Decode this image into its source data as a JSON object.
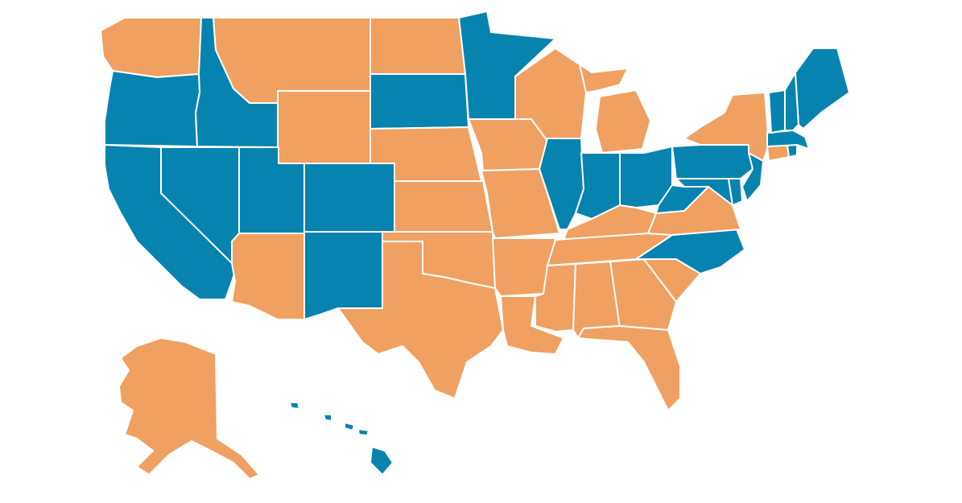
{
  "colors": {
    "blue": "#0783b0",
    "orange": "#f0a060",
    "background": "#ffffff"
  },
  "states": [
    {
      "code": "WA",
      "group": "orange"
    },
    {
      "code": "OR",
      "group": "blue"
    },
    {
      "code": "CA",
      "group": "blue"
    },
    {
      "code": "ID",
      "group": "blue"
    },
    {
      "code": "NV",
      "group": "blue"
    },
    {
      "code": "MT",
      "group": "orange"
    },
    {
      "code": "WY",
      "group": "orange"
    },
    {
      "code": "UT",
      "group": "blue"
    },
    {
      "code": "AZ",
      "group": "orange"
    },
    {
      "code": "CO",
      "group": "blue"
    },
    {
      "code": "NM",
      "group": "blue"
    },
    {
      "code": "ND",
      "group": "orange"
    },
    {
      "code": "SD",
      "group": "blue"
    },
    {
      "code": "NE",
      "group": "orange"
    },
    {
      "code": "KS",
      "group": "orange"
    },
    {
      "code": "OK",
      "group": "orange"
    },
    {
      "code": "TX",
      "group": "orange"
    },
    {
      "code": "MN",
      "group": "blue"
    },
    {
      "code": "IA",
      "group": "orange"
    },
    {
      "code": "MO",
      "group": "orange"
    },
    {
      "code": "AR",
      "group": "orange"
    },
    {
      "code": "LA",
      "group": "orange"
    },
    {
      "code": "WI",
      "group": "orange"
    },
    {
      "code": "IL",
      "group": "blue"
    },
    {
      "code": "MI",
      "group": "orange"
    },
    {
      "code": "IN",
      "group": "blue"
    },
    {
      "code": "OH",
      "group": "blue"
    },
    {
      "code": "KY",
      "group": "orange"
    },
    {
      "code": "TN",
      "group": "orange"
    },
    {
      "code": "MS",
      "group": "orange"
    },
    {
      "code": "AL",
      "group": "orange"
    },
    {
      "code": "GA",
      "group": "orange"
    },
    {
      "code": "FL",
      "group": "orange"
    },
    {
      "code": "SC",
      "group": "orange"
    },
    {
      "code": "NC",
      "group": "blue"
    },
    {
      "code": "VA",
      "group": "orange"
    },
    {
      "code": "WV",
      "group": "blue"
    },
    {
      "code": "MD",
      "group": "blue"
    },
    {
      "code": "DE",
      "group": "blue"
    },
    {
      "code": "PA",
      "group": "blue"
    },
    {
      "code": "NJ",
      "group": "blue"
    },
    {
      "code": "NY",
      "group": "orange"
    },
    {
      "code": "CT",
      "group": "orange"
    },
    {
      "code": "RI",
      "group": "blue"
    },
    {
      "code": "MA",
      "group": "blue"
    },
    {
      "code": "VT",
      "group": "blue"
    },
    {
      "code": "NH",
      "group": "blue"
    },
    {
      "code": "ME",
      "group": "blue"
    },
    {
      "code": "AK",
      "group": "orange"
    },
    {
      "code": "HI",
      "group": "blue"
    }
  ]
}
